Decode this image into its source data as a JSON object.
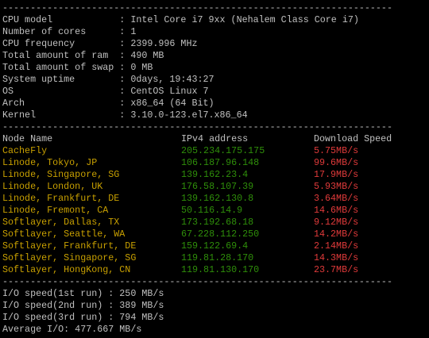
{
  "separator": "----------------------------------------------------------------------",
  "system_info": [
    "CPU model            : Intel Core i7 9xx (Nehalem Class Core i7)",
    "Number of cores      : 1",
    "CPU frequency        : 2399.996 MHz",
    "Total amount of ram  : 490 MB",
    "Total amount of swap : 0 MB",
    "System uptime        : 0days, 19:43:27",
    "OS                   : CentOS Linux 7",
    "Arch                 : x86_64 (64 Bit)",
    "Kernel               : 3.10.0-123.el7.x86_64"
  ],
  "speed_test": {
    "header": [
      "Node Name",
      "IPv4 address",
      "Download Speed"
    ],
    "rows": [
      [
        "CacheFly",
        "205.234.175.175",
        "5.75MB/s"
      ],
      [
        "Linode, Tokyo, JP",
        "106.187.96.148",
        "99.6MB/s"
      ],
      [
        "Linode, Singapore, SG",
        "139.162.23.4",
        "17.9MB/s"
      ],
      [
        "Linode, London, UK",
        "176.58.107.39",
        "5.93MB/s"
      ],
      [
        "Linode, Frankfurt, DE",
        "139.162.130.8",
        "3.64MB/s"
      ],
      [
        "Linode, Fremont, CA",
        "50.116.14.9",
        "14.6MB/s"
      ],
      [
        "Softlayer, Dallas, TX",
        "173.192.68.18",
        "9.12MB/s"
      ],
      [
        "Softlayer, Seattle, WA",
        "67.228.112.250",
        "14.2MB/s"
      ],
      [
        "Softlayer, Frankfurt, DE",
        "159.122.69.4",
        "2.14MB/s"
      ],
      [
        "Softlayer, Singapore, SG",
        "119.81.28.170",
        "14.3MB/s"
      ],
      [
        "Softlayer, HongKong, CN",
        "119.81.130.170",
        "23.7MB/s"
      ]
    ]
  },
  "io_results": [
    "I/O speed(1st run) : 250 MB/s",
    "I/O speed(2nd run) : 389 MB/s",
    "I/O speed(3rd run) : 794 MB/s",
    "Average I/O: 477.667 MB/s"
  ]
}
